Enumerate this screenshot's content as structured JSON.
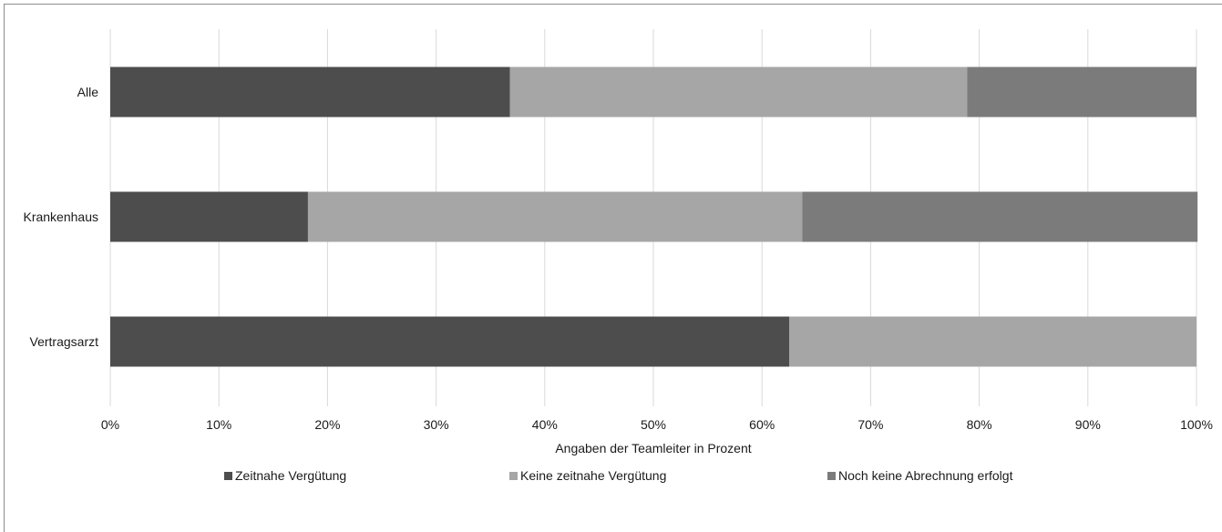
{
  "chart_data": {
    "type": "bar",
    "orientation": "horizontal",
    "stacked": true,
    "percent_stacked": true,
    "categories": [
      "Alle",
      "Krankenhaus",
      "Vertragsarzt"
    ],
    "series": [
      {
        "name": "Zeitnahe Vergütung",
        "color": "#4d4d4d",
        "values": [
          36.8,
          18.2,
          62.5
        ]
      },
      {
        "name": "Keine zeitnahe Vergütung",
        "color": "#a6a6a6",
        "values": [
          42.1,
          45.5,
          37.5
        ]
      },
      {
        "name": "Noch keine Abrechnung erfolgt",
        "color": "#7b7b7b",
        "values": [
          21.1,
          36.4,
          0
        ]
      }
    ],
    "x_ticks": [
      "0%",
      "10%",
      "20%",
      "30%",
      "40%",
      "50%",
      "60%",
      "70%",
      "80%",
      "90%",
      "100%"
    ],
    "xlim": [
      0,
      100
    ],
    "xlabel": "Angaben der Teamleiter in Prozent",
    "grid": true,
    "legend_position": "bottom"
  }
}
